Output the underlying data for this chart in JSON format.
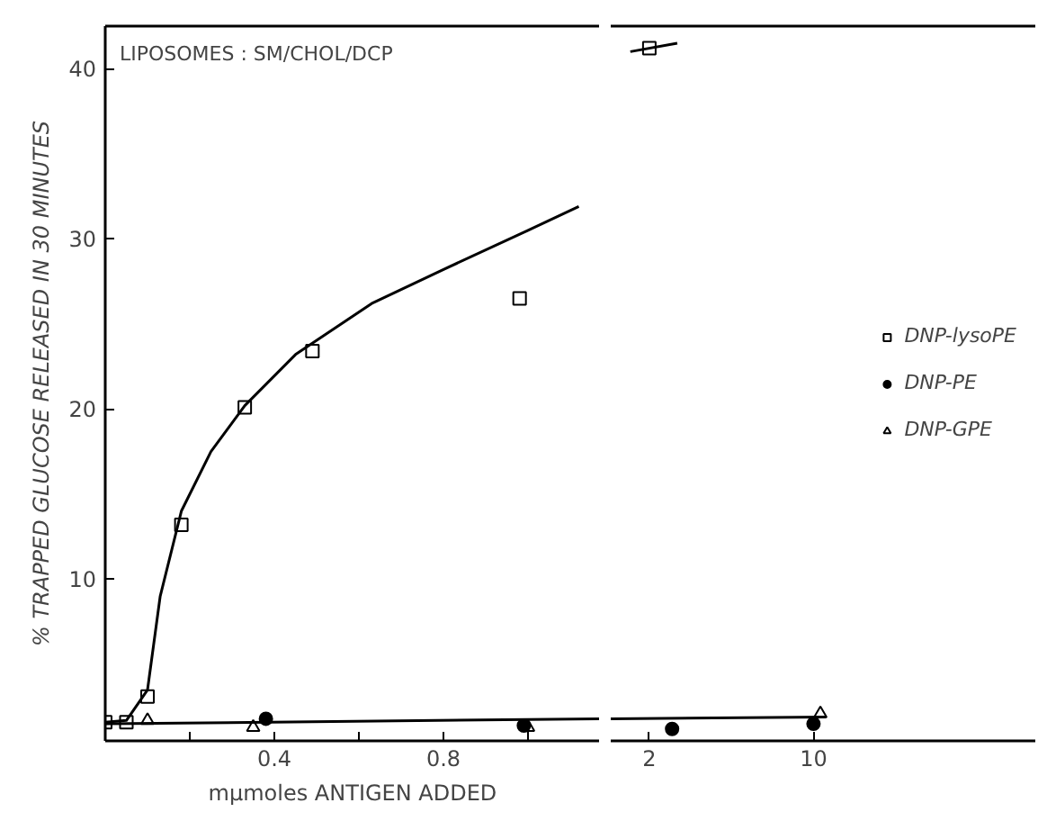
{
  "chart_data": [
    {
      "type": "scatter",
      "xlabel": "mμmoles ANTIGEN ADDED",
      "ylabel": "% TRAPPED GLUCOSE RELEASED IN 30 MINUTES",
      "annotations": [
        "LIPOSOMES : SM/CHOL/DCP"
      ],
      "xlim": [
        0,
        1.17
      ],
      "ylim": [
        0.5,
        42.5
      ],
      "xticks": [
        {
          "value": 0.2,
          "label": null
        },
        0.4,
        {
          "value": 0.6,
          "label": null
        },
        0.8,
        {
          "value": 1.0,
          "label": null
        }
      ],
      "yticks": [
        10,
        20,
        30,
        40
      ],
      "series": [
        {
          "marker": "square",
          "color": "#000000",
          "x": [
            0,
            0.05,
            0.1,
            0.18,
            0.33,
            0.49,
            0.98
          ],
          "values": [
            1.6,
            1.6,
            3.1,
            13.2,
            20.1,
            23.4,
            26.5
          ]
        },
        {
          "type": "line",
          "color": "#000000",
          "x": [
            0,
            0.05,
            0.1,
            0.13,
            0.18,
            0.25,
            0.33,
            0.45,
            0.63,
            0.8,
            1.0,
            1.12
          ],
          "values": [
            1.6,
            1.7,
            3.5,
            9,
            14,
            17.5,
            20.2,
            23.2,
            26.2,
            28.2,
            30.5,
            31.9
          ]
        },
        {
          "marker": "circle",
          "color": "#000000",
          "x": [
            0.38,
            0.99
          ],
          "values": [
            1.8,
            1.4
          ]
        },
        {
          "marker": "triangle",
          "color": "#000000",
          "x": [
            0.1,
            0.35,
            1.0
          ],
          "values": [
            1.7,
            1.3,
            1.3
          ]
        },
        {
          "type": "line",
          "color": "#000000",
          "x": [
            0,
            1.17
          ],
          "values": [
            1.5,
            1.8
          ]
        }
      ]
    },
    {
      "type": "scatter",
      "log": "x",
      "legend": "right",
      "tick_labels": "x",
      "xlim": [
        1.37,
        88
      ],
      "ylim": [
        0.5,
        42.5
      ],
      "xticks": [
        2,
        10
      ],
      "yticks": [
        10,
        20,
        30,
        40
      ],
      "series": [
        {
          "name": "DNP-lysoPE",
          "marker": "square",
          "color": "#000000",
          "x": [
            2
          ],
          "values": [
            41.2
          ]
        },
        {
          "type": "line",
          "color": "#000000",
          "x": [
            1.66,
            2.63
          ],
          "values": [
            41.0,
            41.5
          ]
        },
        {
          "name": "DNP-PE",
          "marker": "circle",
          "color": "#000000",
          "x": [
            2.5,
            10
          ],
          "values": [
            1.2,
            1.5
          ]
        },
        {
          "name": "DNP-GPE",
          "marker": "triangle",
          "color": "#000000",
          "x": [
            10.7
          ],
          "values": [
            2.1
          ]
        },
        {
          "type": "line",
          "color": "#000000",
          "x": [
            1.37,
            11.3
          ],
          "values": [
            1.8,
            1.9
          ]
        }
      ]
    }
  ]
}
